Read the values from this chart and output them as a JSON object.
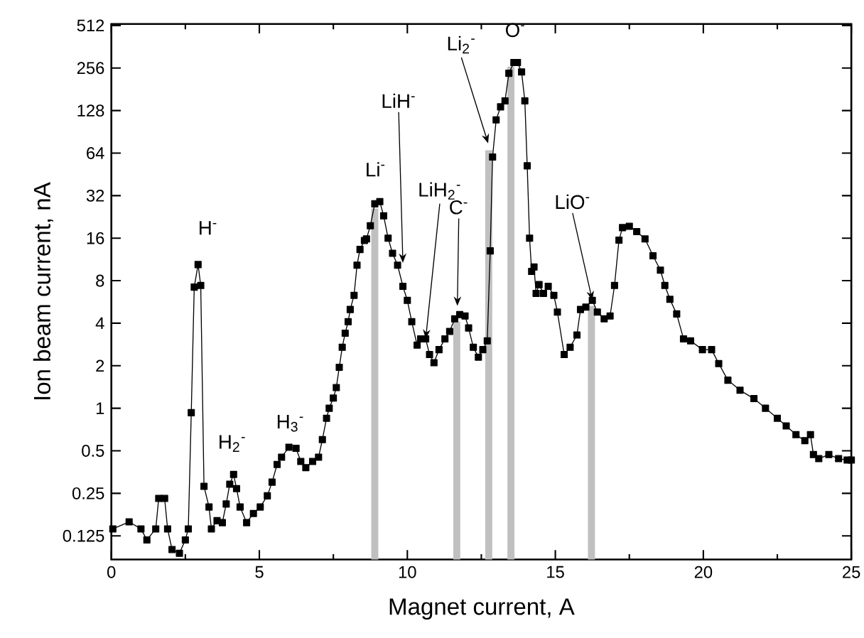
{
  "chart_data": {
    "type": "line",
    "xlabel": "Magnet current, A",
    "ylabel": "Ion beam current, nA",
    "log": "y",
    "xlim": [
      0,
      25
    ],
    "ylim": [
      0.085,
      525
    ],
    "xticks": [
      0,
      5,
      10,
      15,
      20,
      25
    ],
    "yticks": [
      0.125,
      0.25,
      0.5,
      1,
      2,
      4,
      8,
      16,
      32,
      64,
      128,
      256,
      512
    ],
    "grid": false,
    "series": [
      {
        "type": "bar",
        "color": "#c0c0c0",
        "x": [
          8.9,
          11.67,
          12.75,
          13.5,
          16.22
        ],
        "values": [
          26,
          4.1,
          67,
          262,
          5.3
        ]
      },
      {
        "color": "#000000",
        "marker": "square",
        "line_style": "solid",
        "x": [
          0.05,
          0.6,
          1.0,
          1.2,
          1.5,
          1.6,
          1.8,
          1.9,
          2.05,
          2.3,
          2.5,
          2.6,
          2.7,
          2.8,
          2.93,
          3.02,
          3.13,
          3.3,
          3.38,
          3.57,
          3.75,
          3.88,
          4.0,
          4.13,
          4.23,
          4.35,
          4.57,
          4.8,
          5.03,
          5.27,
          5.43,
          5.6,
          5.75,
          6.0,
          6.24,
          6.4,
          6.57,
          6.8,
          7.0,
          7.13,
          7.27,
          7.36,
          7.5,
          7.6,
          7.7,
          7.8,
          7.9,
          8.0,
          8.07,
          8.2,
          8.3,
          8.4,
          8.55,
          8.62,
          8.75,
          8.9,
          9.07,
          9.2,
          9.35,
          9.5,
          9.67,
          9.85,
          10.0,
          10.15,
          10.33,
          10.45,
          10.62,
          10.75,
          10.9,
          11.07,
          11.27,
          11.43,
          11.6,
          11.77,
          11.95,
          12.07,
          12.23,
          12.4,
          12.55,
          12.7,
          12.8,
          12.88,
          13.0,
          13.15,
          13.3,
          13.43,
          13.6,
          13.72,
          13.86,
          13.97,
          14.05,
          14.13,
          14.2,
          14.28,
          14.35,
          14.45,
          14.6,
          14.76,
          14.95,
          15.07,
          15.3,
          15.5,
          15.73,
          15.85,
          16.03,
          16.25,
          16.42,
          16.65,
          16.85,
          17.0,
          17.15,
          17.27,
          17.5,
          17.75,
          18.03,
          18.3,
          18.55,
          18.7,
          18.87,
          19.1,
          19.33,
          19.57,
          19.97,
          20.28,
          20.52,
          20.83,
          21.24,
          21.71,
          22.1,
          22.5,
          22.8,
          23.13,
          23.43,
          23.62,
          23.72,
          23.9,
          24.24,
          24.57,
          24.86,
          25.0
        ],
        "values": [
          0.14,
          0.157,
          0.14,
          0.117,
          0.14,
          0.23,
          0.23,
          0.14,
          0.1,
          0.094,
          0.117,
          0.14,
          0.93,
          7.2,
          10.4,
          7.4,
          0.28,
          0.2,
          0.14,
          0.16,
          0.155,
          0.21,
          0.29,
          0.34,
          0.27,
          0.2,
          0.155,
          0.18,
          0.2,
          0.24,
          0.3,
          0.4,
          0.45,
          0.53,
          0.52,
          0.42,
          0.38,
          0.42,
          0.45,
          0.6,
          0.85,
          1.0,
          1.18,
          1.4,
          1.95,
          2.7,
          3.4,
          4.1,
          5.0,
          6.3,
          10.3,
          13.3,
          15.4,
          15.8,
          19.6,
          28,
          29,
          23,
          16,
          12.5,
          10.3,
          7.3,
          5.8,
          4.1,
          2.8,
          3.1,
          3.1,
          2.4,
          2.1,
          2.6,
          3.1,
          3.5,
          4.3,
          4.6,
          4.5,
          3.7,
          2.7,
          2.3,
          2.6,
          3.0,
          13,
          60,
          110,
          136,
          150,
          235,
          280,
          280,
          240,
          150,
          52,
          16,
          9.3,
          10,
          6.5,
          7.5,
          6.5,
          7.3,
          6.3,
          4.8,
          2.4,
          2.7,
          3.3,
          5.0,
          5.2,
          5.8,
          4.8,
          4.3,
          4.5,
          7.4,
          15.5,
          19,
          19.4,
          17.8,
          15.8,
          12,
          9.5,
          7.4,
          5.9,
          4.65,
          3.1,
          3.0,
          2.6,
          2.6,
          2.07,
          1.58,
          1.34,
          1.17,
          1.0,
          0.85,
          0.75,
          0.65,
          0.59,
          0.65,
          0.47,
          0.44,
          0.47,
          0.44,
          0.43,
          0.43
        ]
      }
    ],
    "annotations": [
      {
        "text": "H$^{-}$",
        "x": 2.93,
        "y": 10.4
      },
      {
        "text": "H$_{2}$$^{-}$",
        "x": 4.13,
        "y": 0.34
      },
      {
        "text": "H$_{3}$$^{-}$",
        "x": 6.0,
        "y": 0.53
      },
      {
        "text": "Li$^{-}$",
        "x": 9.07,
        "y": 29
      },
      {
        "text": "LiH$^{-}$",
        "x": 9.85,
        "y": 10.7
      },
      {
        "text": "LiH$_{2}$$^{-}$",
        "x": 10.62,
        "y": 3.1
      },
      {
        "text": "C$^{-}$",
        "x": 11.69,
        "y": 5.3
      },
      {
        "text": "Li$_{2}$$^{-}$",
        "x": 12.73,
        "y": 75
      },
      {
        "text": "O$^{-}$",
        "x": 13.65,
        "y": 280
      },
      {
        "text": "LiO$^{-}$",
        "x": 16.25,
        "y": 5.8
      }
    ]
  }
}
